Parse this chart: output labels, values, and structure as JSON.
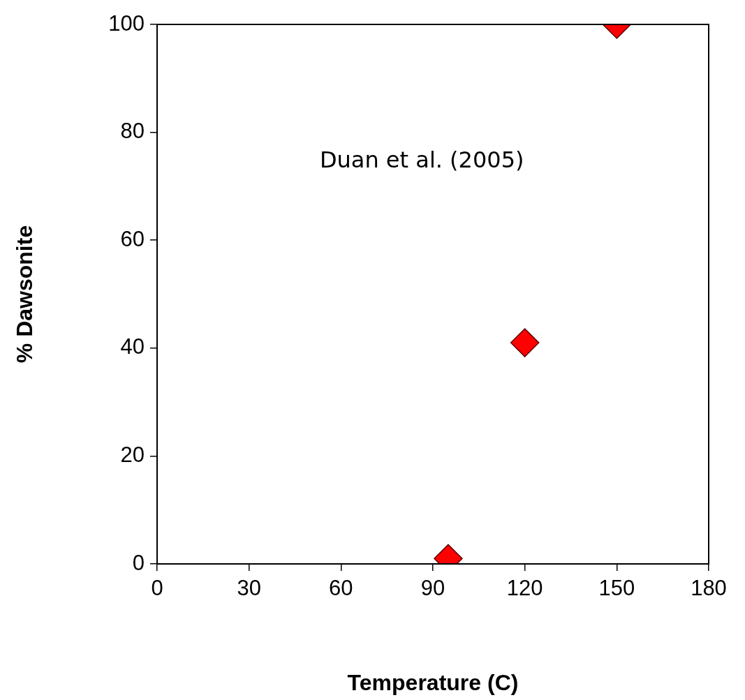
{
  "chart_data": {
    "type": "scatter",
    "xlabel": "Temperature (C)",
    "ylabel": "% Dawsonite",
    "annotations": [
      "Duan et al. (2005)"
    ],
    "x": [
      95,
      120,
      150
    ],
    "values": [
      1,
      41,
      100
    ],
    "color": "#ff0000",
    "marker": "diamond",
    "xlim": [
      0,
      180
    ],
    "xticks": [
      0,
      30,
      60,
      90,
      120,
      150,
      180
    ],
    "ylim": [
      0,
      100
    ],
    "yticks": [
      0,
      20,
      40,
      60,
      80,
      100
    ],
    "grid": false,
    "legend": false
  }
}
